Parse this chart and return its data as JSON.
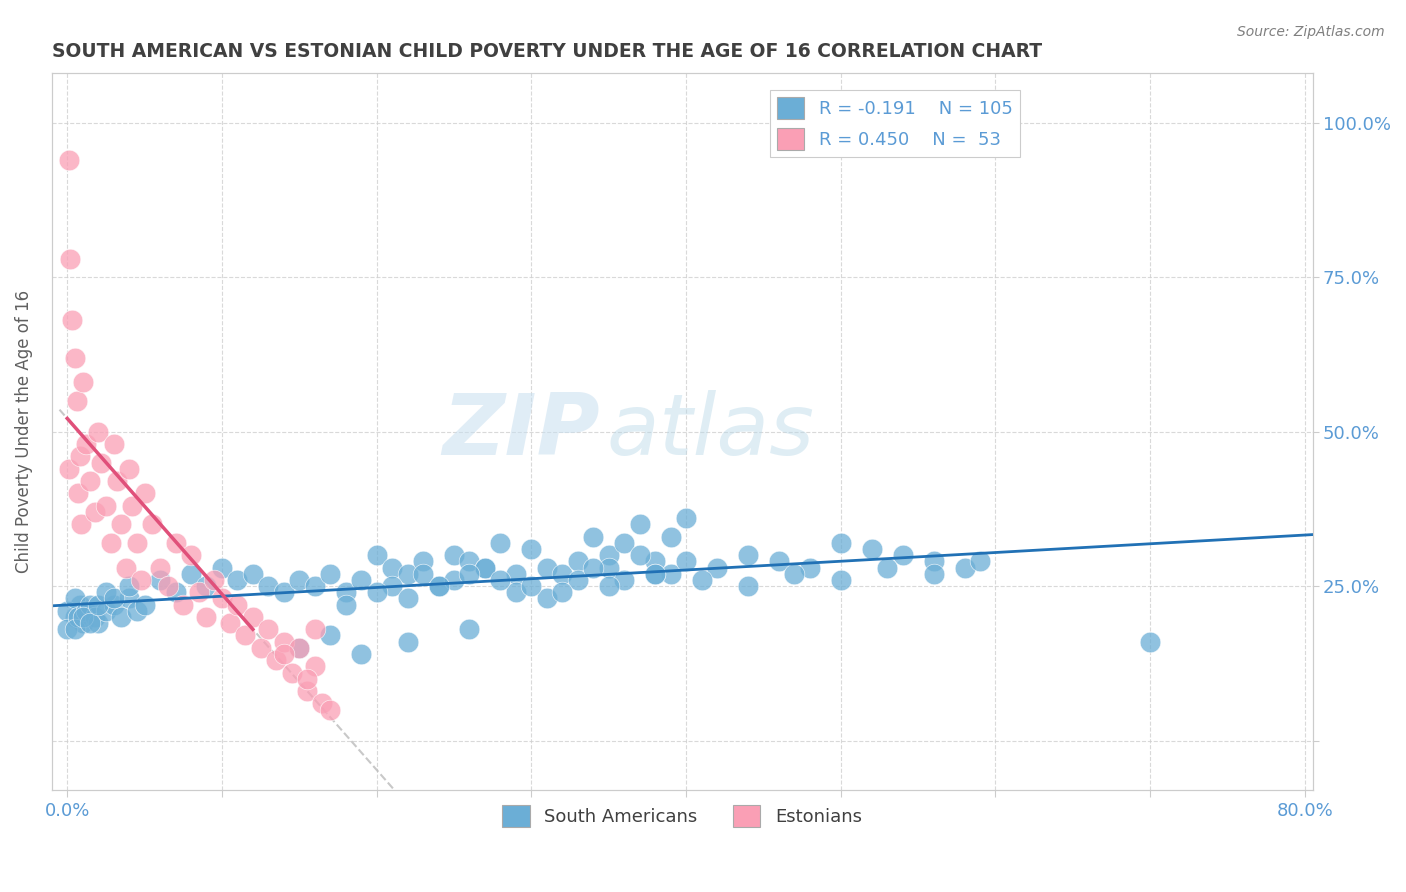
{
  "title": "SOUTH AMERICAN VS ESTONIAN CHILD POVERTY UNDER THE AGE OF 16 CORRELATION CHART",
  "source": "Source: ZipAtlas.com",
  "ylabel": "Child Poverty Under the Age of 16",
  "xlim": [
    0.0,
    0.8
  ],
  "ylim": [
    -0.05,
    1.05
  ],
  "south_american_R": -0.191,
  "south_american_N": 105,
  "estonian_R": 0.45,
  "estonian_N": 53,
  "blue_color": "#6baed6",
  "pink_color": "#fa9fb5",
  "blue_line_color": "#2171b5",
  "pink_line_color": "#e0507a",
  "title_color": "#404040",
  "axis_label_color": "#5b9bd5",
  "source_color": "#808080",
  "watermark_zip": "ZIP",
  "watermark_atlas": "atlas",
  "sa_x": [
    0.005,
    0.008,
    0.01,
    0.0,
    0.0,
    0.005,
    0.007,
    0.012,
    0.015,
    0.018,
    0.02,
    0.025,
    0.03,
    0.035,
    0.04,
    0.045,
    0.005,
    0.01,
    0.015,
    0.02,
    0.025,
    0.03,
    0.04,
    0.05,
    0.06,
    0.07,
    0.08,
    0.09,
    0.1,
    0.11,
    0.12,
    0.13,
    0.14,
    0.15,
    0.16,
    0.17,
    0.18,
    0.19,
    0.2,
    0.21,
    0.22,
    0.23,
    0.24,
    0.25,
    0.26,
    0.27,
    0.28,
    0.29,
    0.3,
    0.31,
    0.32,
    0.33,
    0.34,
    0.35,
    0.36,
    0.37,
    0.38,
    0.39,
    0.4,
    0.21,
    0.23,
    0.25,
    0.27,
    0.29,
    0.31,
    0.33,
    0.35,
    0.37,
    0.39,
    0.18,
    0.2,
    0.22,
    0.24,
    0.26,
    0.28,
    0.3,
    0.32,
    0.34,
    0.36,
    0.38,
    0.4,
    0.42,
    0.44,
    0.46,
    0.48,
    0.5,
    0.52,
    0.54,
    0.56,
    0.58,
    0.35,
    0.38,
    0.41,
    0.44,
    0.47,
    0.5,
    0.53,
    0.56,
    0.59,
    0.15,
    0.17,
    0.19,
    0.22,
    0.26,
    0.7
  ],
  "sa_y": [
    0.2,
    0.22,
    0.19,
    0.21,
    0.18,
    0.23,
    0.2,
    0.21,
    0.22,
    0.2,
    0.19,
    0.21,
    0.22,
    0.2,
    0.23,
    0.21,
    0.18,
    0.2,
    0.19,
    0.22,
    0.24,
    0.23,
    0.25,
    0.22,
    0.26,
    0.24,
    0.27,
    0.25,
    0.28,
    0.26,
    0.27,
    0.25,
    0.24,
    0.26,
    0.25,
    0.27,
    0.24,
    0.26,
    0.3,
    0.28,
    0.27,
    0.29,
    0.25,
    0.3,
    0.29,
    0.28,
    0.32,
    0.27,
    0.31,
    0.28,
    0.27,
    0.29,
    0.33,
    0.3,
    0.32,
    0.35,
    0.29,
    0.33,
    0.36,
    0.25,
    0.27,
    0.26,
    0.28,
    0.24,
    0.23,
    0.26,
    0.28,
    0.3,
    0.27,
    0.22,
    0.24,
    0.23,
    0.25,
    0.27,
    0.26,
    0.25,
    0.24,
    0.28,
    0.26,
    0.27,
    0.29,
    0.28,
    0.3,
    0.29,
    0.28,
    0.32,
    0.31,
    0.3,
    0.29,
    0.28,
    0.25,
    0.27,
    0.26,
    0.25,
    0.27,
    0.26,
    0.28,
    0.27,
    0.29,
    0.15,
    0.17,
    0.14,
    0.16,
    0.18,
    0.16
  ],
  "est_x": [
    0.001,
    0.002,
    0.003,
    0.001,
    0.005,
    0.006,
    0.008,
    0.007,
    0.009,
    0.01,
    0.012,
    0.015,
    0.018,
    0.02,
    0.022,
    0.025,
    0.028,
    0.03,
    0.032,
    0.035,
    0.038,
    0.04,
    0.042,
    0.045,
    0.048,
    0.05,
    0.055,
    0.06,
    0.065,
    0.07,
    0.075,
    0.08,
    0.085,
    0.09,
    0.095,
    0.1,
    0.105,
    0.11,
    0.115,
    0.12,
    0.125,
    0.13,
    0.135,
    0.14,
    0.145,
    0.15,
    0.155,
    0.16,
    0.165,
    0.16,
    0.155,
    0.14,
    0.17
  ],
  "est_y": [
    0.94,
    0.78,
    0.68,
    0.44,
    0.62,
    0.55,
    0.46,
    0.4,
    0.35,
    0.58,
    0.48,
    0.42,
    0.37,
    0.5,
    0.45,
    0.38,
    0.32,
    0.48,
    0.42,
    0.35,
    0.28,
    0.44,
    0.38,
    0.32,
    0.26,
    0.4,
    0.35,
    0.28,
    0.25,
    0.32,
    0.22,
    0.3,
    0.24,
    0.2,
    0.26,
    0.23,
    0.19,
    0.22,
    0.17,
    0.2,
    0.15,
    0.18,
    0.13,
    0.16,
    0.11,
    0.15,
    0.08,
    0.12,
    0.06,
    0.18,
    0.1,
    0.14,
    0.05
  ]
}
